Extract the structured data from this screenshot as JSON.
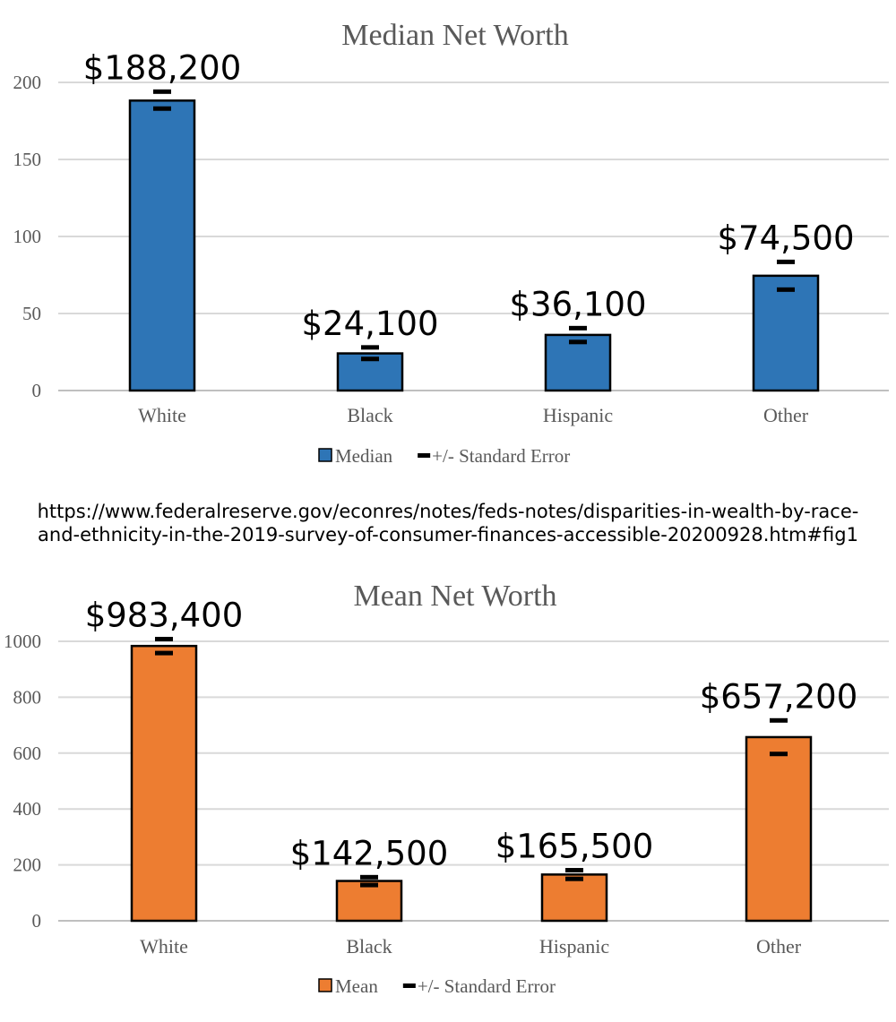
{
  "source_url": {
    "line1": "https://www.federalreserve.gov/econres/notes/feds-notes/disparities-in-wealth-by-race-",
    "line2": "and-ethnicity-in-the-2019-survey-of-consumer-finances-accessible-20200928.htm#fig1"
  },
  "chart_data": [
    {
      "type": "bar",
      "title": "Median Net Worth",
      "categories": [
        "White",
        "Black",
        "Hispanic",
        "Other"
      ],
      "series": [
        {
          "name": "Median",
          "values": [
            188.2,
            24.1,
            36.1,
            74.5
          ],
          "data_labels": [
            "$188,200",
            "$24,100",
            "$36,100",
            "$74,500"
          ],
          "error_bars": [
            [
              183,
              194
            ],
            [
              20.5,
              28
            ],
            [
              31.5,
              40.5
            ],
            [
              65.5,
              83.5
            ]
          ]
        }
      ],
      "legend": [
        "Median",
        "+/- Standard Error"
      ],
      "yticks": [
        0,
        50,
        100,
        150,
        200
      ],
      "ylim": [
        0,
        200
      ],
      "color": "#2E75B6",
      "grid": true,
      "legend_position": "bottom"
    },
    {
      "type": "bar",
      "title": "Mean Net Worth",
      "categories": [
        "White",
        "Black",
        "Hispanic",
        "Other"
      ],
      "series": [
        {
          "name": "Mean",
          "values": [
            983.4,
            142.5,
            165.5,
            657.2
          ],
          "data_labels": [
            "$983,400",
            "$142,500",
            "$165,500",
            "$657,200"
          ],
          "error_bars": [
            [
              958,
              1008
            ],
            [
              128,
              156
            ],
            [
              150,
              181
            ],
            [
              597,
              717
            ]
          ]
        }
      ],
      "legend": [
        "Mean",
        "+/- Standard Error"
      ],
      "yticks": [
        0,
        200,
        400,
        600,
        800,
        1000
      ],
      "ylim": [
        0,
        1000
      ],
      "color": "#ED7D31",
      "grid": true,
      "legend_position": "bottom"
    }
  ]
}
